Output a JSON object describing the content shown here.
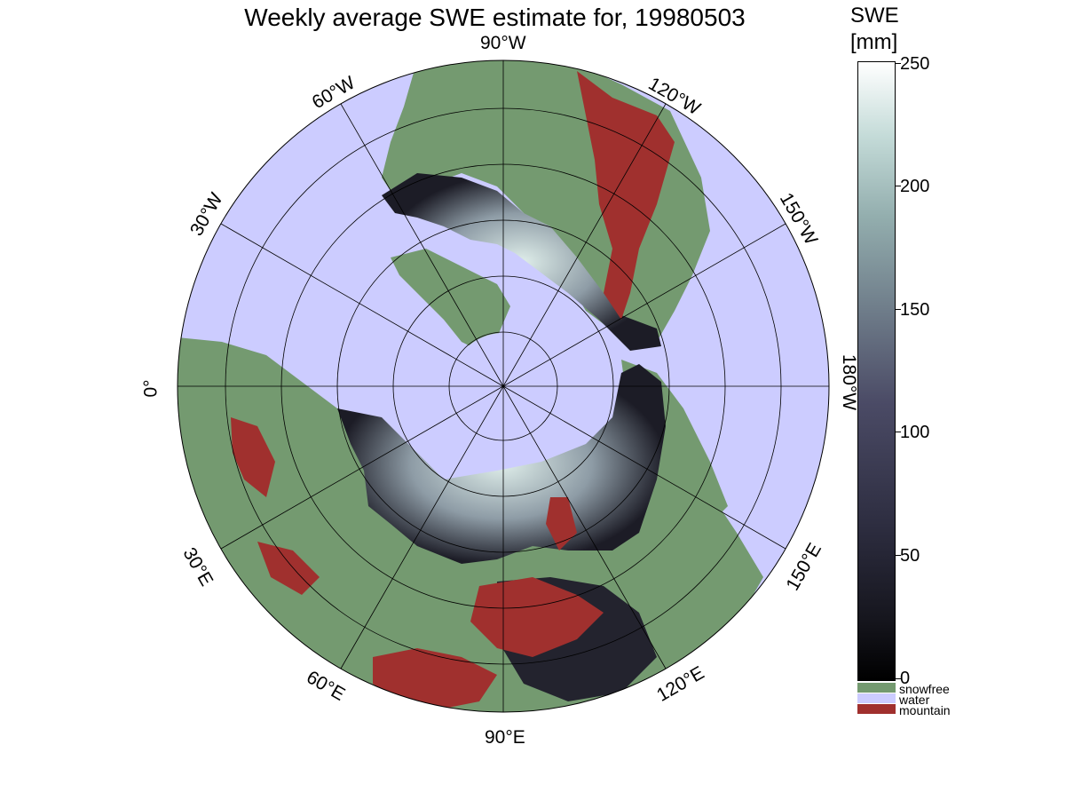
{
  "title": "Weekly average SWE estimate for, 19980503",
  "longitude_labels": {
    "w90": "90°W",
    "w60": "60°W",
    "w120": "120°W",
    "w30": "30°W",
    "w150": "150°W",
    "zero": "0°",
    "w180": "180°W",
    "e30": "30°E",
    "e150": "150°E",
    "e60": "60°E",
    "e120": "120°E",
    "e90": "90°E"
  },
  "colorbar": {
    "title_line1": "SWE",
    "title_line2": "[mm]",
    "ticks": [
      "250",
      "200",
      "150",
      "100",
      "50",
      "0"
    ],
    "min": 0,
    "max": 250
  },
  "legend": [
    {
      "label": "snowfree",
      "color": "#749a70"
    },
    {
      "label": "water",
      "color": "#ccccff"
    },
    {
      "label": "mountain",
      "color": "#a0302e"
    }
  ],
  "colors": {
    "ocean": "#ccccff",
    "land_snowfree": "#749a70",
    "mountain": "#a0302e",
    "snow_low": "#1a1a24",
    "snow_high": "#e8f2f0"
  }
}
